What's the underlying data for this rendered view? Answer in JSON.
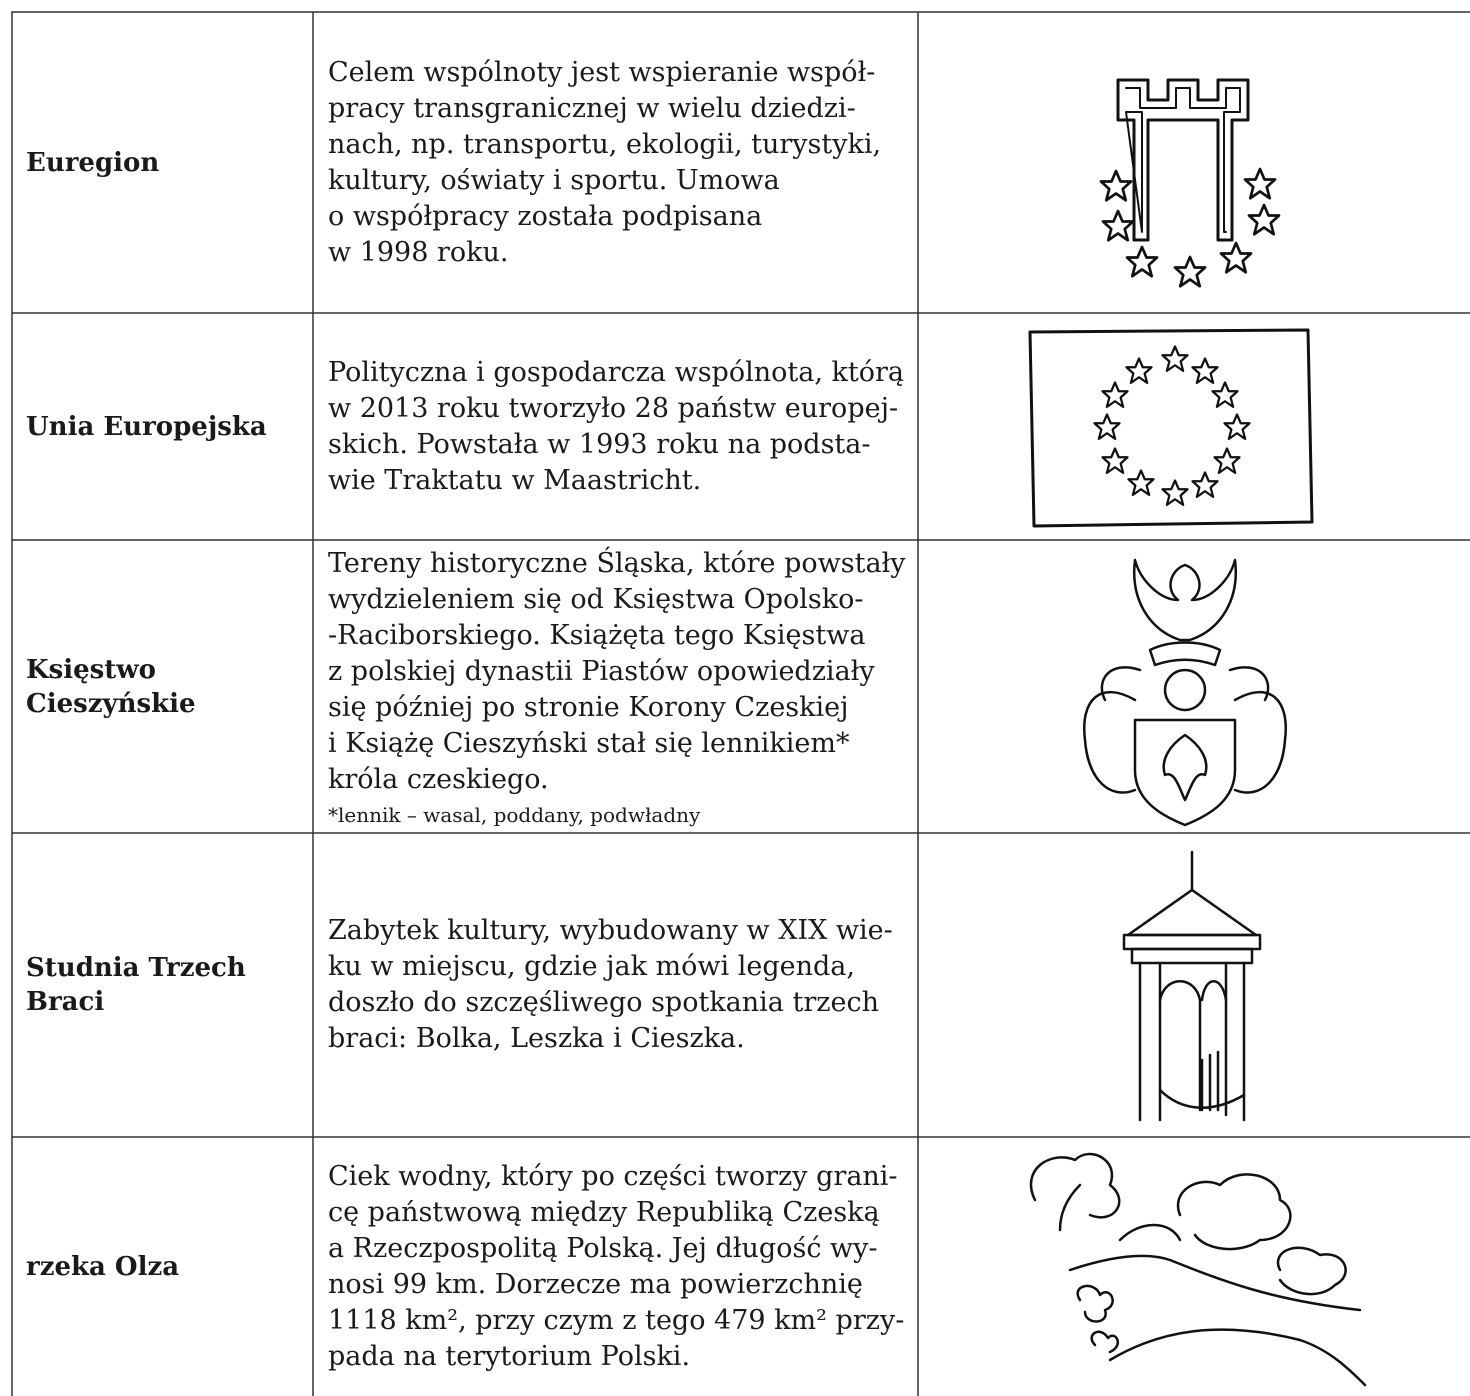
{
  "table": {
    "rows": [
      {
        "term": "Euregion",
        "description": [
          "Celem wspólnoty jest wspieranie współ-",
          "pracy transgranicznej w wielu dziedzi-",
          "nach, np. transportu, ekologii, turystyki,",
          "kultury, oświaty i sportu. Umowa",
          "o współpracy została podpisana",
          "w 1998 roku."
        ]
      },
      {
        "term": "Unia Europejska",
        "description": [
          "Polityczna i gospodarcza wspólnota, którą",
          "w 2013 roku tworzyło 28 państw europej-",
          "skich. Powstała w 1993 roku na podsta-",
          "wie Traktatu w Maastricht."
        ]
      },
      {
        "term": "Księstwo Cieszyńskie",
        "description": [
          "Tereny historyczne Śląska, które powstały",
          "wydzieleniem się od Księstwa Opolsko-",
          "-Raciborskiego. Książęta tego Księstwa",
          "z polskiej dynastii Piastów opowiedziały",
          "się później po stronie Korony Czeskiej",
          "i Książę Cieszyński stał się lennikiem*",
          "króla czeskiego."
        ],
        "note": "*lennik – wasal, poddany, podwładny"
      },
      {
        "term": "Studnia Trzech Braci",
        "description": [
          "Zabytek kultury, wybudowany w XIX wie-",
          "ku w miejscu, gdzie jak mówi legenda,",
          "doszło do szczęśliwego spotkania trzech",
          "braci: Bolka, Leszka i Cieszka."
        ]
      },
      {
        "term": "rzeka Olza",
        "description": [
          "Ciek wodny, który po części tworzy grani-",
          "cę państwową między Republiką Czeską",
          "a Rzeczpospolitą Polską. Jej długość wy-",
          "nosi 99 km. Dorzecze ma powierzchnię",
          "1118 km², przy czym z tego 479 km² przy-",
          "pada na terytorium Polski."
        ]
      }
    ]
  }
}
